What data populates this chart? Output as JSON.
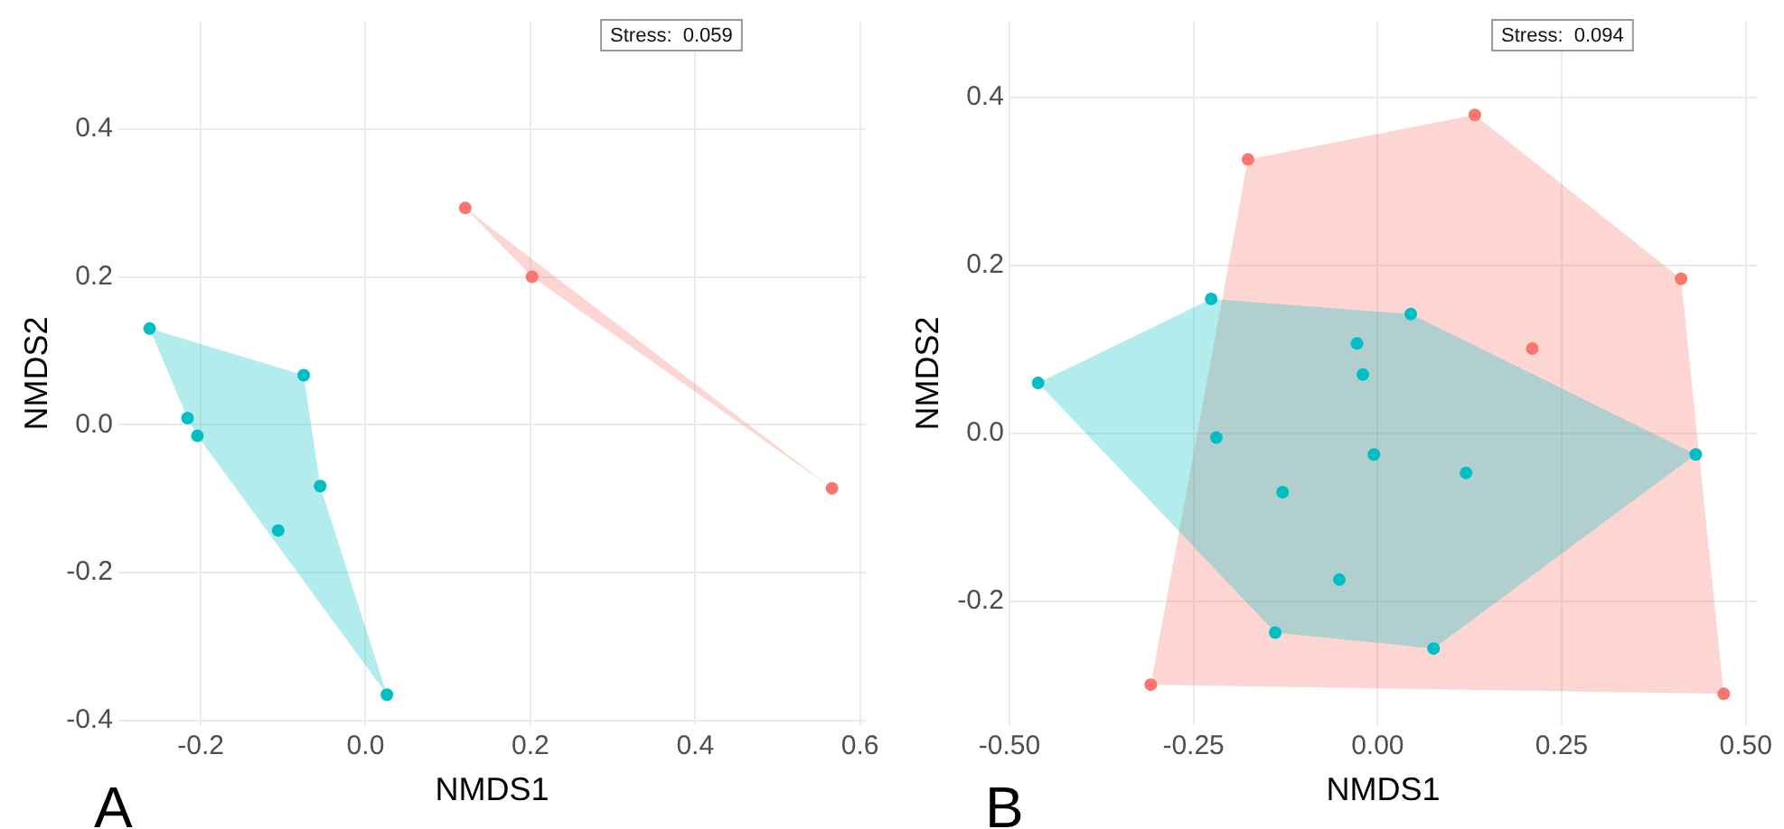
{
  "chart_data": [
    {
      "type": "scatter",
      "xlabel": "NMDS1",
      "ylabel": "NMDS2",
      "annotations": [
        "Stress:  0.059",
        "A"
      ],
      "xlim": [
        -0.3,
        0.607
      ],
      "ylim": [
        -0.406,
        0.545
      ],
      "xticks": [
        -0.2,
        {
          "value": 0,
          "label": "0.0"
        },
        0.2,
        0.4,
        0.6
      ],
      "yticks": [
        -0.4,
        -0.2,
        {
          "value": 0,
          "label": "0.0"
        },
        0.2,
        0.4
      ],
      "grid": true,
      "legend": false,
      "marker": "circle",
      "series": [
        {
          "type": "area",
          "marker": "none",
          "color": "#00bfc4",
          "x": [
            -0.262,
            -0.075,
            -0.055,
            0.026,
            -0.204,
            -0.216
          ],
          "values": [
            0.13,
            0.067,
            -0.083,
            -0.365,
            -0.015,
            0.009
          ]
        },
        {
          "type": "area",
          "marker": "none",
          "color": "#f8766d",
          "x": [
            0.121,
            0.202,
            0.566
          ],
          "values": [
            0.293,
            0.2,
            -0.086
          ]
        },
        {
          "color": "#00bfc4",
          "x": [
            -0.262,
            -0.075,
            -0.216,
            -0.204,
            -0.055,
            -0.106,
            0.026
          ],
          "values": [
            0.13,
            0.067,
            0.009,
            -0.015,
            -0.083,
            -0.143,
            -0.365
          ]
        },
        {
          "color": "#f8766d",
          "x": [
            0.121,
            0.202,
            0.566
          ],
          "values": [
            0.293,
            0.2,
            -0.086
          ]
        }
      ]
    },
    {
      "type": "scatter",
      "xlabel": "NMDS1",
      "ylabel": "NMDS2",
      "annotations": [
        "Stress:  0.094",
        "B"
      ],
      "xlim": [
        -0.5,
        0.515
      ],
      "ylim": [
        -0.347,
        0.49
      ],
      "xticks": [
        {
          "value": -0.5,
          "label": "-0.50"
        },
        -0.25,
        {
          "value": 0,
          "label": "0.00"
        },
        0.25,
        {
          "value": 0.5,
          "label": "0.50"
        }
      ],
      "yticks": [
        -0.2,
        {
          "value": 0,
          "label": "0.0"
        },
        0.2,
        0.4
      ],
      "grid": true,
      "legend": false,
      "marker": "circle",
      "series": [
        {
          "type": "area",
          "marker": "none",
          "color": "#f8766d",
          "x": [
            -0.176,
            0.132,
            0.412,
            0.47,
            -0.308
          ],
          "values": [
            0.326,
            0.379,
            0.184,
            -0.31,
            -0.299
          ]
        },
        {
          "type": "area",
          "marker": "none",
          "color": "#00bfc4",
          "x": [
            -0.461,
            -0.226,
            0.045,
            0.432,
            0.076,
            -0.139
          ],
          "values": [
            0.06,
            0.16,
            0.142,
            -0.025,
            -0.256,
            -0.237
          ]
        },
        {
          "color": "#f8766d",
          "x": [
            -0.176,
            0.132,
            0.412,
            0.21,
            0.47,
            -0.308
          ],
          "values": [
            0.326,
            0.379,
            0.184,
            0.101,
            -0.31,
            -0.299
          ]
        },
        {
          "color": "#00bfc4",
          "x": [
            -0.461,
            -0.226,
            0.045,
            -0.028,
            -0.02,
            -0.219,
            -0.005,
            0.12,
            -0.129,
            -0.052,
            -0.139,
            0.076,
            0.432
          ],
          "values": [
            0.06,
            0.16,
            0.142,
            0.107,
            0.07,
            -0.005,
            -0.025,
            -0.047,
            -0.07,
            -0.174,
            -0.237,
            -0.256,
            -0.025
          ]
        }
      ]
    }
  ]
}
